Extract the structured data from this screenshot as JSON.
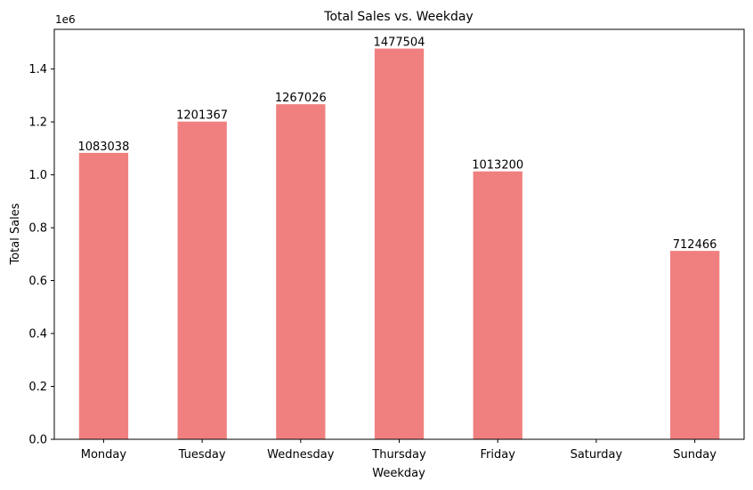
{
  "chart_data": {
    "type": "bar",
    "title": "Total Sales vs. Weekday",
    "xlabel": "Weekday",
    "ylabel": "Total Sales",
    "scale_label": "1e6",
    "categories": [
      "Monday",
      "Tuesday",
      "Wednesday",
      "Thursday",
      "Friday",
      "Saturday",
      "Sunday"
    ],
    "values": [
      1083038,
      1201367,
      1267026,
      1477504,
      1013200,
      0,
      712466
    ],
    "data_labels": [
      "1083038",
      "1201367",
      "1267026",
      "1477504",
      "1013200",
      "",
      "712466"
    ],
    "ylim": [
      0,
      1550000
    ],
    "yticks": [
      0,
      200000,
      400000,
      600000,
      800000,
      1000000,
      1200000,
      1400000
    ],
    "ytick_labels": [
      "0.0",
      "0.2",
      "0.4",
      "0.6",
      "0.8",
      "1.0",
      "1.2",
      "1.4"
    ],
    "bar_color": "#f08080",
    "grid": false,
    "legend": "none"
  }
}
